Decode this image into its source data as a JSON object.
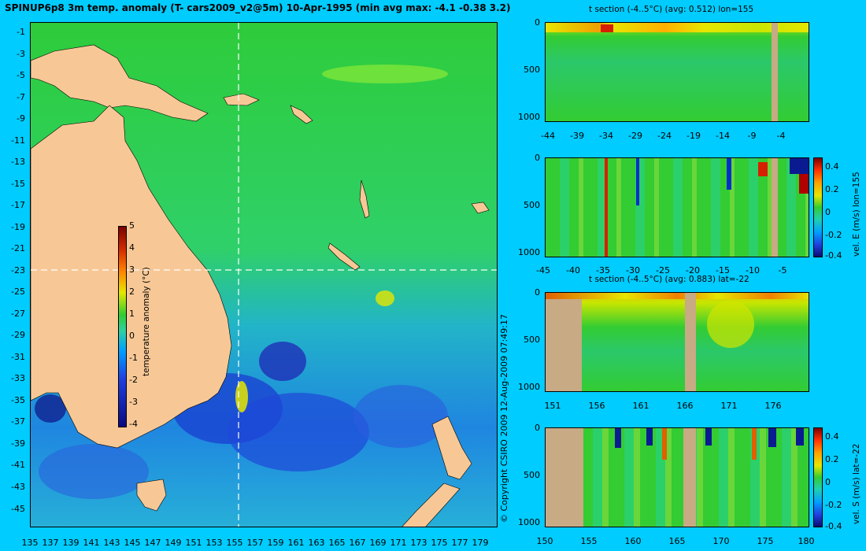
{
  "title": "SPINUP6p8 3m temp. anomaly (T- cars2009_v2@5m) 10-Apr-1995 (min avg max: -4.1 -0.38 3.2)",
  "copyright": "© Copyright CSIRO 2009   12-Aug-2009 07:49:17",
  "map": {
    "lat_labels": [
      "-1",
      "-3",
      "-5",
      "-7",
      "-9",
      "-11",
      "-13",
      "-15",
      "-17",
      "-19",
      "-21",
      "-23",
      "-25",
      "-27",
      "-29",
      "-31",
      "-33",
      "-35",
      "-37",
      "-39",
      "-41",
      "-43",
      "-45"
    ],
    "lon_labels": [
      "135",
      "137",
      "139",
      "141",
      "143",
      "145",
      "147",
      "149",
      "151",
      "153",
      "155",
      "157",
      "159",
      "161",
      "163",
      "165",
      "167",
      "169",
      "171",
      "173",
      "175",
      "177",
      "179"
    ],
    "colorbar": {
      "ticks": [
        "5",
        "4",
        "3",
        "2",
        "1",
        "0",
        "-1",
        "-2",
        "-3",
        "-4"
      ],
      "label": "temperature anomaly (°C)",
      "range": [
        -4,
        5
      ]
    }
  },
  "panels": {
    "p1": {
      "title": "t section (-4..5°C) (avg: 0.512) lon=155",
      "y_ticks": [
        "0",
        "500",
        "1000"
      ],
      "x_ticks": [
        "-44",
        "-39",
        "-34",
        "-29",
        "-24",
        "-19",
        "-14",
        "-9",
        "-4"
      ]
    },
    "p2": {
      "title": "",
      "y_ticks": [
        "0",
        "500",
        "1000"
      ],
      "x_ticks": [
        "-45",
        "-40",
        "-35",
        "-30",
        "-25",
        "-20",
        "-15",
        "-10",
        "-5"
      ],
      "colorbar_ticks": [
        "0.4",
        "0.2",
        "0",
        "-0.2",
        "-0.4"
      ],
      "colorbar_label": "vel. E (m/s) lon=155"
    },
    "p3": {
      "title": "t section (-4..5°C) (avg: 0.883) lat=-22",
      "y_ticks": [
        "0",
        "500",
        "1000"
      ],
      "x_ticks": [
        "151",
        "156",
        "161",
        "166",
        "171",
        "176"
      ]
    },
    "p4": {
      "title": "",
      "y_ticks": [
        "0",
        "500",
        "1000"
      ],
      "x_ticks": [
        "150",
        "155",
        "160",
        "165",
        "170",
        "175",
        "180"
      ],
      "colorbar_ticks": [
        "0.4",
        "0.2",
        "0",
        "-0.2",
        "-0.4"
      ],
      "colorbar_label": "vel. S (m/s) lat=-22"
    }
  },
  "colors": {
    "background": "#00ccff",
    "land": "#f7c896",
    "section_land": "#c8aa84",
    "ocean_green": "#33cc33",
    "cold_blue": "#0033cc",
    "warm_yellow": "#e6e600"
  }
}
